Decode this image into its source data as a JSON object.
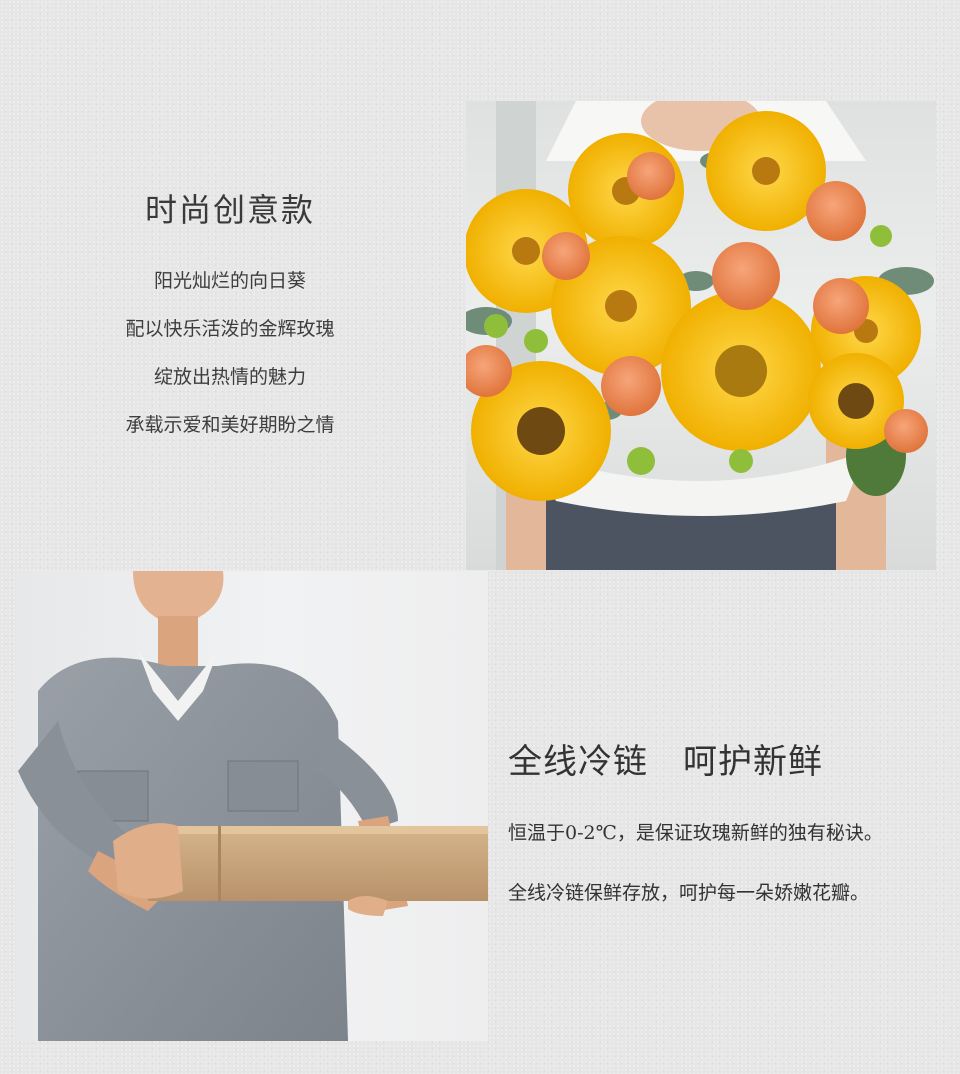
{
  "intro": {
    "title": "时尚创意款",
    "lines": [
      "阳光灿烂的向日葵",
      "配以快乐活泼的金辉玫瑰",
      "绽放出热情的魅力",
      "承载示爱和美好期盼之情"
    ]
  },
  "coldchain": {
    "title": "全线冷链　呵护新鲜",
    "lines": [
      "恒温于0-2℃，是保证玫瑰新鲜的独有秘诀。",
      "全线冷链保鲜存放，呵护每一朵娇嫩花瓣。"
    ]
  },
  "colors": {
    "sunflower": "#f6c21a",
    "rose": "#ee8a52",
    "leaf": "#6f8c78",
    "box": "#c9a67c",
    "uniform": "#8e9399"
  }
}
